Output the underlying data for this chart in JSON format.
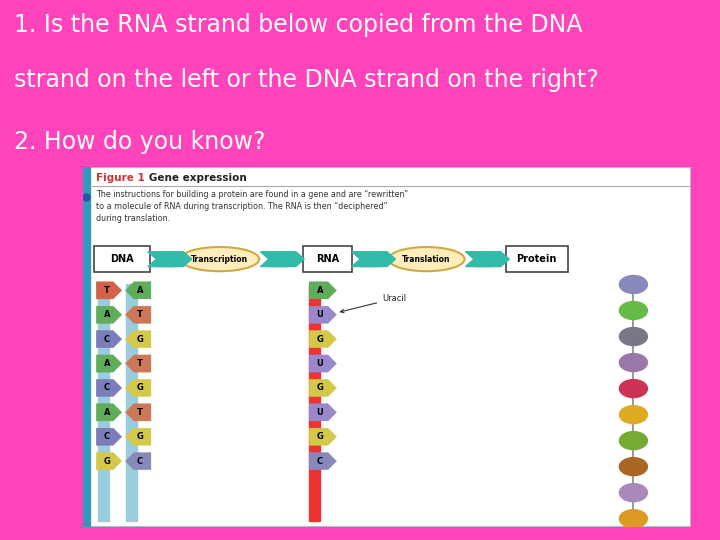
{
  "bg_color": "#FF44BB",
  "text_color": "#FFFFFF",
  "question_lines": [
    "1. Is the RNA strand below copied from the DNA",
    "strand on the left or the DNA strand on the right?",
    "2. How do you know?"
  ],
  "text_fontsize": 17,
  "figure_title": "Figure 1",
  "figure_subtitle": "   Gene expression",
  "figure_body": "The instructions for building a protein are found in a gene and are “rewritten”\nto a molecule of RNA during transcription. The RNA is then “deciphered”\nduring translation.",
  "dna_label": "DNA",
  "rna_label": "RNA",
  "transcription_label": "Transcription",
  "translation_label": "Translation",
  "protein_label": "Protein",
  "uracil_label": "Uracil",
  "dna_left_bases": [
    "T",
    "A",
    "C",
    "A",
    "C",
    "A",
    "C",
    "G"
  ],
  "dna_left_colors": [
    "#D4614A",
    "#5FAD5A",
    "#7B7DB8",
    "#5FAD5A",
    "#7B7DB8",
    "#5FAD5A",
    "#7B7DB8",
    "#D4C84A"
  ],
  "dna_right_bases": [
    "A",
    "T",
    "G",
    "T",
    "G",
    "T",
    "G",
    "C"
  ],
  "dna_right_colors": [
    "#5FAD5A",
    "#CC7755",
    "#D4C84A",
    "#CC7755",
    "#D4C84A",
    "#CC7755",
    "#D4C84A",
    "#8888BB"
  ],
  "rna_bases": [
    "A",
    "U",
    "G",
    "U",
    "G",
    "U",
    "G",
    "C"
  ],
  "rna_colors": [
    "#5FAD5A",
    "#9988CC",
    "#D4C84A",
    "#9988CC",
    "#D4C84A",
    "#9988CC",
    "#D4C84A",
    "#8888BB"
  ],
  "bead_colors": [
    "#8888BB",
    "#66BB44",
    "#777788",
    "#9977AA",
    "#CC3355",
    "#DDAA22",
    "#77AA33",
    "#AA6622",
    "#AA88BB",
    "#DD9922"
  ]
}
